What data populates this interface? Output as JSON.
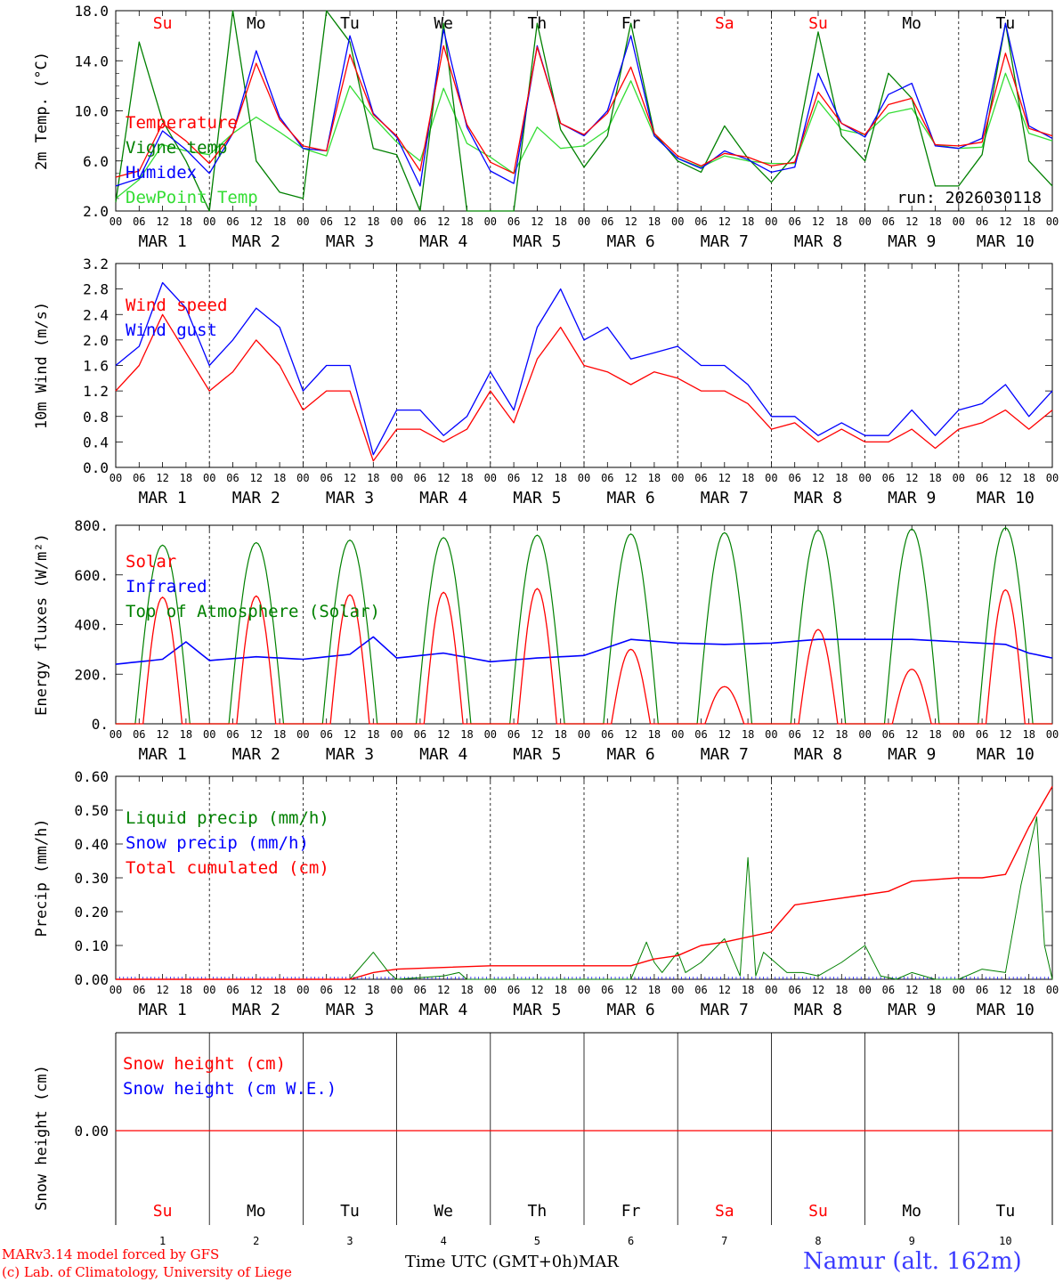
{
  "run_label": "run: 2026030118",
  "footer": {
    "credit_line1": "MARv3.14 model forced by GFS",
    "credit_line2": "(c) Lab. of Climatology, University of Liege",
    "x_axis_title": "Time UTC (GMT+0h)",
    "x_axis_month": "MAR",
    "station": "Namur (alt. 162m)"
  },
  "colors": {
    "red": "#ff0000",
    "green": "#008000",
    "blue": "#0000ff",
    "light_green": "#33dd33"
  },
  "days": [
    {
      "name": "Su",
      "weekend": true,
      "date": "1",
      "label": "MAR 1"
    },
    {
      "name": "Mo",
      "weekend": false,
      "date": "2",
      "label": "MAR 2"
    },
    {
      "name": "Tu",
      "weekend": false,
      "date": "3",
      "label": "MAR 3"
    },
    {
      "name": "We",
      "weekend": false,
      "date": "4",
      "label": "MAR 4"
    },
    {
      "name": "Th",
      "weekend": false,
      "date": "5",
      "label": "MAR 5"
    },
    {
      "name": "Fr",
      "weekend": false,
      "date": "6",
      "label": "MAR 6"
    },
    {
      "name": "Sa",
      "weekend": true,
      "date": "7",
      "label": "MAR 7"
    },
    {
      "name": "Su",
      "weekend": true,
      "date": "8",
      "label": "MAR 8"
    },
    {
      "name": "Mo",
      "weekend": false,
      "date": "9",
      "label": "MAR 9"
    },
    {
      "name": "Tu",
      "weekend": false,
      "date": "10",
      "label": "MAR 10"
    }
  ],
  "hour_ticks": [
    "00",
    "06",
    "12",
    "18"
  ],
  "final_tick": "00",
  "chart_data": [
    {
      "id": "temperature",
      "type": "line",
      "ylabel": "2m Temp. (°C)",
      "ylim": [
        2,
        18
      ],
      "yticks": [
        "2.0",
        "6.0",
        "10.0",
        "14.0",
        "18.0"
      ],
      "legend": [
        "Temperature",
        "Vigne temp",
        "Humidex",
        "DewPoint Temp"
      ],
      "x_hours": [
        0,
        6,
        12,
        18,
        24,
        30,
        36,
        42,
        48,
        54,
        60,
        66,
        72,
        78,
        84,
        90,
        96,
        102,
        108,
        114,
        120,
        126,
        132,
        138,
        144,
        150,
        156,
        162,
        168,
        174,
        180,
        186,
        192,
        198,
        204,
        210,
        216,
        222,
        228,
        234,
        240
      ],
      "series": [
        {
          "name": "Temperature",
          "color": "red",
          "values": [
            4.7,
            5.2,
            9.0,
            7.6,
            5.8,
            8.2,
            13.8,
            9.3,
            7.2,
            6.8,
            14.5,
            9.7,
            8.0,
            5.2,
            15.2,
            8.9,
            5.9,
            5.0,
            15.1,
            9.0,
            8.1,
            9.8,
            13.5,
            8.2,
            6.4,
            5.6,
            6.6,
            6.3,
            5.6,
            5.9,
            11.5,
            9.0,
            8.1,
            10.5,
            11.0,
            7.3,
            7.2,
            7.5,
            14.6,
            8.6,
            8.0
          ]
        },
        {
          "name": "Vigne temp",
          "color": "green",
          "values": [
            2.7,
            15.5,
            9.2,
            6.0,
            2.0,
            18.0,
            6.0,
            3.5,
            3.0,
            18.0,
            15.5,
            7.0,
            6.5,
            2.0,
            17.0,
            2.0,
            2.0,
            2.0,
            17.0,
            8.5,
            5.5,
            8.0,
            17.0,
            8.2,
            6.0,
            5.1,
            8.8,
            6.2,
            4.3,
            6.5,
            16.3,
            8.0,
            6.0,
            13.0,
            11.0,
            4.0,
            4.0,
            6.5,
            17.0,
            6.0,
            4.0
          ]
        },
        {
          "name": "Humidex",
          "color": "blue",
          "values": [
            4.0,
            4.6,
            8.4,
            6.9,
            5.0,
            8.2,
            14.8,
            9.5,
            7.0,
            6.8,
            16.0,
            9.8,
            7.9,
            4.0,
            16.5,
            8.7,
            5.2,
            4.2,
            15.2,
            9.0,
            8.0,
            10.0,
            16.0,
            8.0,
            6.2,
            5.4,
            6.8,
            6.1,
            5.1,
            5.5,
            13.0,
            9.0,
            7.9,
            11.3,
            12.2,
            7.2,
            7.0,
            7.8,
            17.0,
            8.8,
            7.8
          ]
        },
        {
          "name": "DewPoint Temp",
          "color": "light_green",
          "values": [
            3.0,
            4.5,
            7.3,
            6.8,
            6.5,
            8.2,
            9.5,
            8.3,
            7.0,
            6.4,
            12.0,
            9.5,
            7.5,
            6.0,
            11.8,
            7.4,
            6.3,
            5.0,
            8.7,
            7.0,
            7.2,
            8.5,
            12.4,
            8.0,
            6.2,
            5.5,
            6.4,
            6.0,
            5.8,
            5.8,
            10.8,
            8.5,
            8.1,
            9.8,
            10.2,
            7.3,
            7.0,
            7.1,
            13.0,
            8.2,
            7.6
          ]
        }
      ]
    },
    {
      "id": "wind",
      "type": "line",
      "ylabel": "10m Wind (m/s)",
      "ylim": [
        0,
        3.2
      ],
      "yticks": [
        "0.0",
        "0.4",
        "0.8",
        "1.2",
        "1.6",
        "2.0",
        "2.4",
        "2.8",
        "3.2"
      ],
      "legend": [
        "Wind speed",
        "Wind gust"
      ],
      "x_hours": [
        0,
        6,
        12,
        18,
        24,
        30,
        36,
        42,
        48,
        54,
        60,
        66,
        72,
        78,
        84,
        90,
        96,
        102,
        108,
        114,
        120,
        126,
        132,
        138,
        144,
        150,
        156,
        162,
        168,
        174,
        180,
        186,
        192,
        198,
        204,
        210,
        216,
        222,
        228,
        234,
        240
      ],
      "series": [
        {
          "name": "Wind speed",
          "color": "red",
          "values": [
            1.2,
            1.6,
            2.4,
            1.8,
            1.2,
            1.5,
            2.0,
            1.6,
            0.9,
            1.2,
            1.2,
            0.1,
            0.6,
            0.6,
            0.4,
            0.6,
            1.2,
            0.7,
            1.7,
            2.2,
            1.6,
            1.5,
            1.3,
            1.5,
            1.4,
            1.2,
            1.2,
            1.0,
            0.6,
            0.7,
            0.4,
            0.6,
            0.4,
            0.4,
            0.6,
            0.3,
            0.6,
            0.7,
            0.9,
            0.6,
            0.9
          ]
        },
        {
          "name": "Wind gust",
          "color": "blue",
          "values": [
            1.6,
            1.9,
            2.9,
            2.5,
            1.6,
            2.0,
            2.5,
            2.2,
            1.2,
            1.6,
            1.6,
            0.2,
            0.9,
            0.9,
            0.5,
            0.8,
            1.5,
            0.9,
            2.2,
            2.8,
            2.0,
            2.2,
            1.7,
            1.8,
            1.9,
            1.6,
            1.6,
            1.3,
            0.8,
            0.8,
            0.5,
            0.7,
            0.5,
            0.5,
            0.9,
            0.5,
            0.9,
            1.0,
            1.3,
            0.8,
            1.2
          ]
        }
      ]
    },
    {
      "id": "energy",
      "type": "line",
      "ylabel": "Energy fluxes (W/m²)",
      "ylim": [
        0,
        800
      ],
      "yticks": [
        "0.",
        "200.",
        "400.",
        "600.",
        "800."
      ],
      "legend": [
        "Solar",
        "Infrared",
        "Top of Atmosphere (Solar)"
      ],
      "daily_peaks": {
        "solar": [
          510,
          515,
          520,
          530,
          545,
          300,
          150,
          380,
          220,
          540
        ],
        "toa": [
          720,
          730,
          740,
          750,
          760,
          765,
          770,
          780,
          785,
          790
        ]
      },
      "infrared_x_hours": [
        0,
        12,
        18,
        24,
        36,
        48,
        60,
        66,
        72,
        84,
        96,
        108,
        120,
        132,
        144,
        156,
        168,
        180,
        192,
        204,
        216,
        228,
        234,
        240
      ],
      "infrared_values": [
        240,
        260,
        330,
        255,
        270,
        260,
        280,
        350,
        265,
        285,
        250,
        265,
        275,
        340,
        325,
        320,
        325,
        340,
        340,
        340,
        330,
        320,
        285,
        265
      ],
      "series_names": [
        {
          "name": "Solar",
          "color": "red"
        },
        {
          "name": "Infrared",
          "color": "blue"
        },
        {
          "name": "Top of Atmosphere (Solar)",
          "color": "green"
        }
      ]
    },
    {
      "id": "precip",
      "type": "line",
      "ylabel": "Precip (mm/h)",
      "ylim": [
        0,
        0.6
      ],
      "yticks": [
        "0.00",
        "0.10",
        "0.20",
        "0.30",
        "0.40",
        "0.50",
        "0.60"
      ],
      "legend": [
        "Liquid precip (mm/h)",
        "Snow precip (mm/h)",
        "Total cumulated (cm)"
      ],
      "series": [
        {
          "name": "Liquid precip (mm/h)",
          "color": "green",
          "x": [
            0,
            60,
            66,
            70,
            72,
            84,
            88,
            90,
            96,
            132,
            136,
            138,
            140,
            144,
            146,
            150,
            156,
            160,
            162,
            164,
            166,
            172,
            176,
            180,
            186,
            192,
            196,
            200,
            204,
            210,
            216,
            222,
            228,
            232,
            236,
            238,
            240
          ],
          "values": [
            0,
            0,
            0.08,
            0.02,
            0,
            0.01,
            0.02,
            0,
            0,
            0,
            0.11,
            0.05,
            0.02,
            0.08,
            0.02,
            0.05,
            0.12,
            0.01,
            0.36,
            0.01,
            0.08,
            0.02,
            0.02,
            0.01,
            0.05,
            0.1,
            0.01,
            0,
            0.02,
            0,
            0,
            0.03,
            0.02,
            0.28,
            0.48,
            0.1,
            0
          ]
        },
        {
          "name": "Total cumulated (cm)",
          "color": "red",
          "x": [
            0,
            60,
            66,
            72,
            84,
            96,
            108,
            120,
            132,
            138,
            144,
            150,
            156,
            168,
            174,
            180,
            192,
            198,
            204,
            216,
            222,
            228,
            234,
            240
          ],
          "values": [
            0,
            0,
            0.02,
            0.03,
            0.035,
            0.04,
            0.04,
            0.04,
            0.04,
            0.06,
            0.07,
            0.1,
            0.11,
            0.14,
            0.22,
            0.23,
            0.25,
            0.26,
            0.29,
            0.3,
            0.3,
            0.31,
            0.45,
            0.57
          ]
        }
      ]
    },
    {
      "id": "snow",
      "type": "line",
      "ylabel": "Snow height (cm)",
      "yticks": [
        "0.00"
      ],
      "legend": [
        "Snow height (cm)",
        "Snow height (cm W.E.)"
      ],
      "series": [
        {
          "name": "Snow height (cm)",
          "color": "red",
          "values": [
            0,
            0
          ]
        },
        {
          "name": "Snow height (cm W.E.)",
          "color": "blue",
          "values": [
            0,
            0
          ]
        }
      ]
    }
  ]
}
